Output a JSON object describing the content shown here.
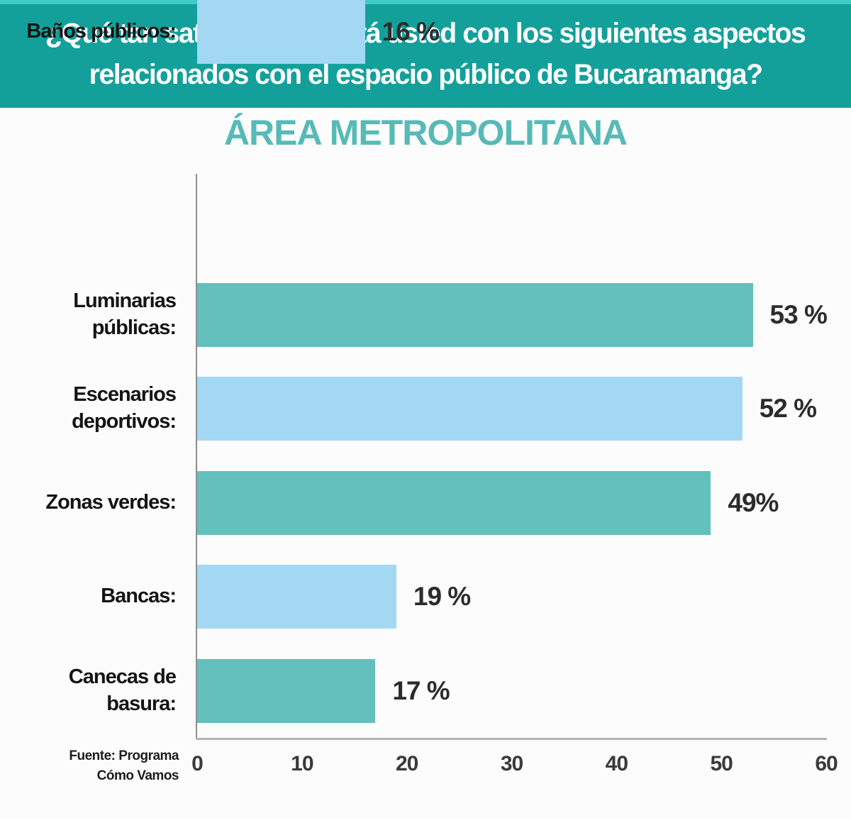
{
  "banner": {
    "title_line1": "¿Qué tan satisfecho(a) está usted con los siguientes aspectos",
    "title_line2": "relacionados con el espacio público de Bucaramanga?",
    "bg_color": "#13a09b",
    "top_edge_color": "#3ecbc2",
    "text_color": "#ffffff"
  },
  "subtitle": {
    "text": "ÁREA METROPOLITANA",
    "color": "#57bab6"
  },
  "source": {
    "line1": "Fuente: Programa",
    "line2": "Cómo Vamos"
  },
  "chart_data": {
    "type": "bar",
    "orientation": "horizontal",
    "title": "ÁREA METROPOLITANA",
    "xlabel": "",
    "ylabel": "",
    "xlim": [
      0,
      60
    ],
    "xticks": [
      0,
      10,
      20,
      30,
      40,
      50,
      60
    ],
    "grid": false,
    "legend": "none",
    "categories": [
      "Luminarias públicas:",
      "Escenarios deportivos:",
      "Zonas verdes:",
      "Bancas:",
      "Canecas de basura:",
      "Baños públicos:"
    ],
    "values": [
      53,
      52,
      49,
      19,
      17,
      16
    ],
    "bar_color_teal": "#63c0bc",
    "bar_color_blue": "#a3d8f3",
    "rows": [
      {
        "label_line1": "Luminarias",
        "label_line2": "públicas:",
        "value": 53,
        "value_label": "53 %",
        "color": "#63c0bc"
      },
      {
        "label_line1": "Escenarios",
        "label_line2": "deportivos:",
        "value": 52,
        "value_label": "52 %",
        "color": "#a3d8f3"
      },
      {
        "label_line1": "Zonas verdes:",
        "label_line2": "",
        "value": 49,
        "value_label": "49%",
        "color": "#63c0bc"
      },
      {
        "label_line1": "Bancas:",
        "label_line2": "",
        "value": 19,
        "value_label": "19 %",
        "color": "#a3d8f3"
      },
      {
        "label_line1": "Canecas de basura:",
        "label_line2": "",
        "value": 17,
        "value_label": "17 %",
        "color": "#63c0bc"
      },
      {
        "label_line1": "Baños públicos:",
        "label_line2": "",
        "value": 16,
        "value_label": "16 %",
        "color": "#a3d8f3"
      }
    ]
  }
}
